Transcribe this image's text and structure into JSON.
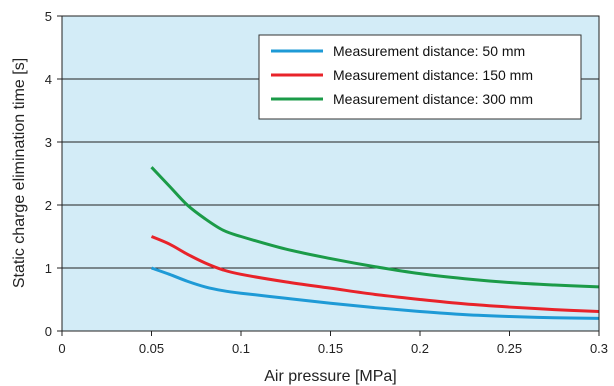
{
  "chart_data": {
    "type": "line",
    "xlabel": "Air pressure [MPa]",
    "ylabel": "Static charge elimination time [s]",
    "xlim": [
      0,
      0.3
    ],
    "ylim": [
      0,
      5
    ],
    "x_ticks": [
      "0",
      "0.05",
      "0.1",
      "0.15",
      "0.2",
      "0.25",
      "0.3"
    ],
    "y_ticks": [
      "0",
      "1",
      "2",
      "3",
      "4",
      "5"
    ],
    "grid": "horizontal",
    "legend_position": "top-right",
    "plot_background": "#d3ecf7",
    "series": [
      {
        "name": "Measurement distance: 50 mm",
        "color": "#1e9ad6",
        "x": [
          0.05,
          0.06,
          0.07,
          0.08,
          0.09,
          0.1,
          0.125,
          0.15,
          0.175,
          0.2,
          0.225,
          0.25,
          0.275,
          0.3
        ],
        "y": [
          1.0,
          0.9,
          0.79,
          0.7,
          0.64,
          0.6,
          0.52,
          0.44,
          0.37,
          0.31,
          0.26,
          0.23,
          0.21,
          0.2
        ]
      },
      {
        "name": "Measurement distance: 150 mm",
        "color": "#e8232a",
        "x": [
          0.05,
          0.06,
          0.07,
          0.08,
          0.09,
          0.1,
          0.125,
          0.15,
          0.175,
          0.2,
          0.225,
          0.25,
          0.275,
          0.3
        ],
        "y": [
          1.5,
          1.38,
          1.22,
          1.08,
          0.97,
          0.9,
          0.78,
          0.68,
          0.58,
          0.5,
          0.43,
          0.38,
          0.34,
          0.31
        ]
      },
      {
        "name": "Measurement distance: 300 mm",
        "color": "#1b9b48",
        "x": [
          0.05,
          0.06,
          0.07,
          0.08,
          0.09,
          0.1,
          0.125,
          0.15,
          0.175,
          0.2,
          0.225,
          0.25,
          0.275,
          0.3
        ],
        "y": [
          2.6,
          2.3,
          2.0,
          1.78,
          1.6,
          1.5,
          1.3,
          1.15,
          1.02,
          0.91,
          0.83,
          0.77,
          0.73,
          0.7
        ]
      }
    ]
  }
}
